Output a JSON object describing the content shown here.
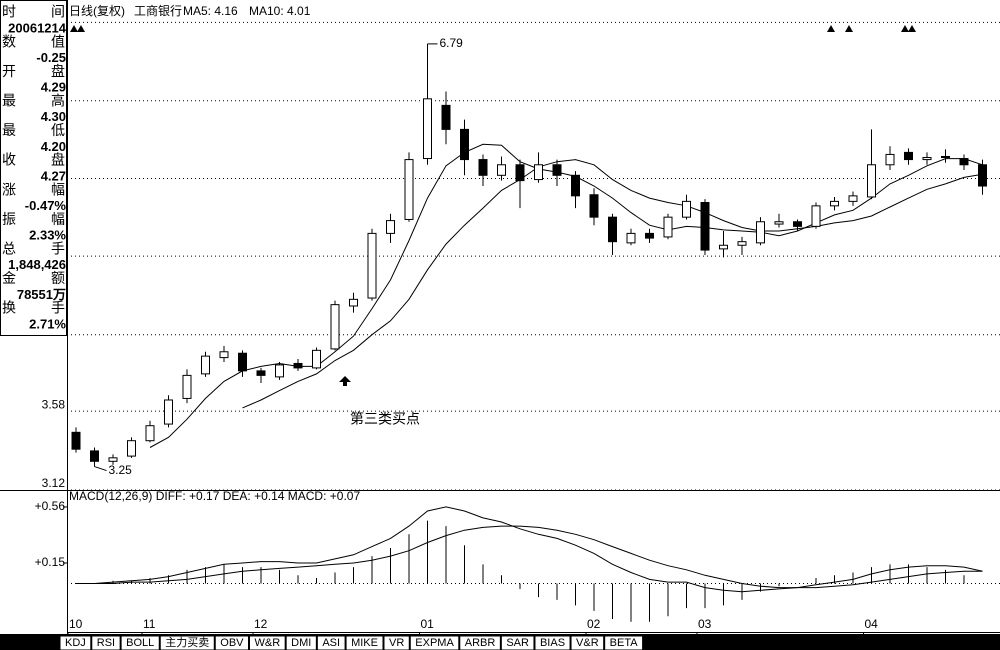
{
  "header": {
    "period": "日线(复权)",
    "name": "工商银行",
    "ma_text": [
      "MA5: 4.16",
      "MA10: 4.01"
    ]
  },
  "info_panel": [
    {
      "label": "时间",
      "value": "20061214"
    },
    {
      "label": "数值",
      "value": "-0.25"
    },
    {
      "label": "开盘",
      "value": "4.29"
    },
    {
      "label": "最高",
      "value": "4.30"
    },
    {
      "label": "最低",
      "value": "4.20"
    },
    {
      "label": "收盘",
      "value": "4.27"
    },
    {
      "label": "涨幅",
      "value": "-0.47%"
    },
    {
      "label": "振幅",
      "value": "2.33%"
    },
    {
      "label": "总手",
      "value": "1,848,426"
    },
    {
      "label": "金额",
      "value": "78551万"
    },
    {
      "label": "换手",
      "value": "2.71%"
    }
  ],
  "chart_data": [
    {
      "type": "candlestick",
      "categories": [
        "10",
        null,
        null,
        null,
        "11",
        null,
        null,
        null,
        null,
        null,
        "12",
        null,
        null,
        null,
        null,
        null,
        null,
        null,
        null,
        "01",
        null,
        null,
        null,
        null,
        null,
        null,
        null,
        null,
        "02",
        null,
        null,
        null,
        null,
        null,
        "03",
        null,
        null,
        null,
        null,
        null,
        null,
        null,
        null,
        "04",
        null,
        null,
        null,
        null,
        null,
        null
      ],
      "open": [
        3.45,
        3.34,
        3.28,
        3.31,
        3.4,
        3.5,
        3.66,
        3.82,
        3.93,
        3.96,
        3.84,
        3.8,
        3.89,
        3.86,
        3.99,
        4.3,
        4.36,
        4.88,
        5.0,
        5.56,
        6.1,
        5.85,
        5.55,
        5.4,
        5.5,
        5.36,
        5.5,
        5.4,
        5.22,
        5.02,
        4.8,
        4.88,
        4.85,
        5.02,
        5.15,
        4.75,
        4.78,
        4.8,
        4.96,
        4.98,
        4.94,
        5.12,
        5.16,
        5.2,
        5.5,
        5.62,
        5.55,
        5.58,
        5.56,
        5.5
      ],
      "high": [
        3.48,
        3.36,
        3.32,
        3.42,
        3.52,
        3.68,
        3.85,
        3.97,
        4.01,
        3.98,
        3.86,
        3.9,
        3.92,
        4.0,
        4.34,
        4.4,
        4.92,
        5.05,
        5.62,
        6.79,
        6.25,
        5.95,
        5.6,
        5.58,
        5.55,
        5.62,
        5.55,
        5.44,
        5.28,
        5.05,
        4.92,
        4.92,
        5.05,
        5.22,
        5.18,
        4.9,
        4.85,
        5.02,
        5.05,
        5.0,
        5.15,
        5.2,
        5.25,
        5.85,
        5.68,
        5.66,
        5.62,
        5.65,
        5.6,
        5.55
      ],
      "low": [
        3.33,
        3.25,
        3.26,
        3.3,
        3.39,
        3.48,
        3.63,
        3.8,
        3.9,
        3.8,
        3.76,
        3.78,
        3.84,
        3.85,
        3.98,
        4.25,
        4.34,
        4.8,
        4.98,
        5.5,
        5.7,
        5.4,
        5.3,
        5.35,
        5.1,
        5.33,
        5.3,
        5.1,
        4.95,
        4.7,
        4.78,
        4.8,
        4.83,
        5.0,
        4.7,
        4.68,
        4.7,
        4.78,
        4.93,
        4.9,
        4.92,
        5.08,
        5.12,
        5.18,
        5.45,
        5.5,
        5.5,
        5.52,
        5.45,
        5.22
      ],
      "close": [
        3.35,
        3.28,
        3.3,
        3.4,
        3.49,
        3.65,
        3.81,
        3.94,
        3.97,
        3.84,
        3.81,
        3.88,
        3.86,
        3.98,
        4.31,
        4.35,
        4.88,
        4.99,
        5.55,
        6.17,
        5.85,
        5.55,
        5.4,
        5.5,
        5.35,
        5.5,
        5.4,
        5.21,
        5.02,
        4.81,
        4.88,
        4.84,
        5.02,
        5.16,
        4.74,
        4.78,
        4.81,
        4.98,
        4.98,
        4.94,
        5.12,
        5.16,
        5.21,
        5.5,
        5.6,
        5.55,
        5.57,
        5.57,
        5.5,
        5.3
      ],
      "ma5": [
        null,
        null,
        null,
        null,
        3.36,
        3.42,
        3.53,
        3.66,
        3.77,
        3.84,
        3.87,
        3.89,
        3.87,
        3.87,
        3.97,
        4.08,
        4.28,
        4.5,
        4.82,
        5.19,
        5.49,
        5.62,
        5.7,
        5.69,
        5.53,
        5.46,
        5.43,
        5.39,
        5.3,
        5.19,
        5.06,
        4.95,
        4.91,
        4.94,
        4.93,
        4.91,
        4.9,
        4.89,
        4.86,
        4.9,
        4.97,
        5.04,
        5.08,
        5.19,
        5.32,
        5.4,
        5.49,
        5.56,
        5.56,
        5.5
      ],
      "ma10": [
        null,
        null,
        null,
        null,
        null,
        null,
        null,
        null,
        null,
        3.6,
        3.65,
        3.71,
        3.77,
        3.82,
        3.91,
        3.98,
        4.09,
        4.19,
        4.35,
        4.58,
        4.79,
        4.95,
        5.1,
        5.26,
        5.36,
        5.48,
        5.53,
        5.55,
        5.5,
        5.36,
        5.26,
        5.19,
        5.15,
        5.12,
        5.06,
        4.99,
        4.93,
        4.9,
        4.9,
        4.92,
        4.94,
        4.97,
        4.99,
        5.03,
        5.11,
        5.19,
        5.27,
        5.32,
        5.38,
        5.41
      ],
      "color": "#000000",
      "log_scale": true,
      "ylim": [
        3.12,
        7.33
      ],
      "yticks": [
        3.12,
        3.58,
        4.09,
        4.69,
        5.37,
        6.15,
        7.05
      ],
      "grid": true,
      "annotations": [
        "第三类买点"
      ]
    },
    {
      "type": "macd",
      "title": "MACD(12,26,9) DIFF: +0.17 DEA: +0.14 MACD: +0.07",
      "diff": [
        0.0,
        0.0,
        0.01,
        0.02,
        0.03,
        0.05,
        0.08,
        0.11,
        0.14,
        0.15,
        0.16,
        0.16,
        0.15,
        0.15,
        0.18,
        0.21,
        0.27,
        0.33,
        0.42,
        0.53,
        0.56,
        0.53,
        0.48,
        0.45,
        0.4,
        0.36,
        0.33,
        0.28,
        0.22,
        0.14,
        0.08,
        0.03,
        0.01,
        0.01,
        -0.03,
        -0.05,
        -0.06,
        -0.05,
        -0.04,
        -0.03,
        -0.01,
        0.01,
        0.03,
        0.07,
        0.1,
        0.12,
        0.13,
        0.13,
        0.12,
        0.09
      ],
      "dea": [
        0.0,
        0.0,
        0.0,
        0.01,
        0.01,
        0.02,
        0.03,
        0.05,
        0.07,
        0.09,
        0.1,
        0.11,
        0.12,
        0.13,
        0.14,
        0.15,
        0.17,
        0.2,
        0.24,
        0.3,
        0.35,
        0.39,
        0.41,
        0.42,
        0.42,
        0.41,
        0.39,
        0.36,
        0.32,
        0.27,
        0.22,
        0.17,
        0.13,
        0.1,
        0.06,
        0.03,
        0.0,
        -0.02,
        -0.03,
        -0.03,
        -0.03,
        -0.02,
        -0.01,
        0.01,
        0.03,
        0.05,
        0.07,
        0.08,
        0.09,
        0.09
      ],
      "macd": [
        0.0,
        0.0,
        0.02,
        0.02,
        0.04,
        0.06,
        0.1,
        0.12,
        0.14,
        0.12,
        0.12,
        0.1,
        0.06,
        0.04,
        0.08,
        0.12,
        0.2,
        0.26,
        0.36,
        0.46,
        0.42,
        0.28,
        0.14,
        0.06,
        -0.04,
        -0.1,
        -0.12,
        -0.16,
        -0.2,
        -0.26,
        -0.28,
        -0.28,
        -0.24,
        -0.18,
        -0.18,
        -0.16,
        -0.12,
        -0.06,
        -0.02,
        0.0,
        0.04,
        0.06,
        0.08,
        0.12,
        0.14,
        0.14,
        0.12,
        0.1,
        0.06,
        0.0
      ],
      "color": "#000000",
      "ylim": [
        -0.355,
        0.684
      ],
      "yticks": [
        {
          "value": 0.56,
          "label": "+0.56"
        },
        {
          "value": 0.15,
          "label": "+0.15"
        }
      ],
      "grid": true
    }
  ],
  "tabs": [
    "KDJ",
    "RSI",
    "BOLL",
    "主力买卖",
    "OBV",
    "W&R",
    "DMI",
    "ASI",
    "MIKE",
    "VR",
    "EXPMA",
    "ARBR",
    "SAR",
    "BIAS",
    "V&R",
    "BETA"
  ]
}
